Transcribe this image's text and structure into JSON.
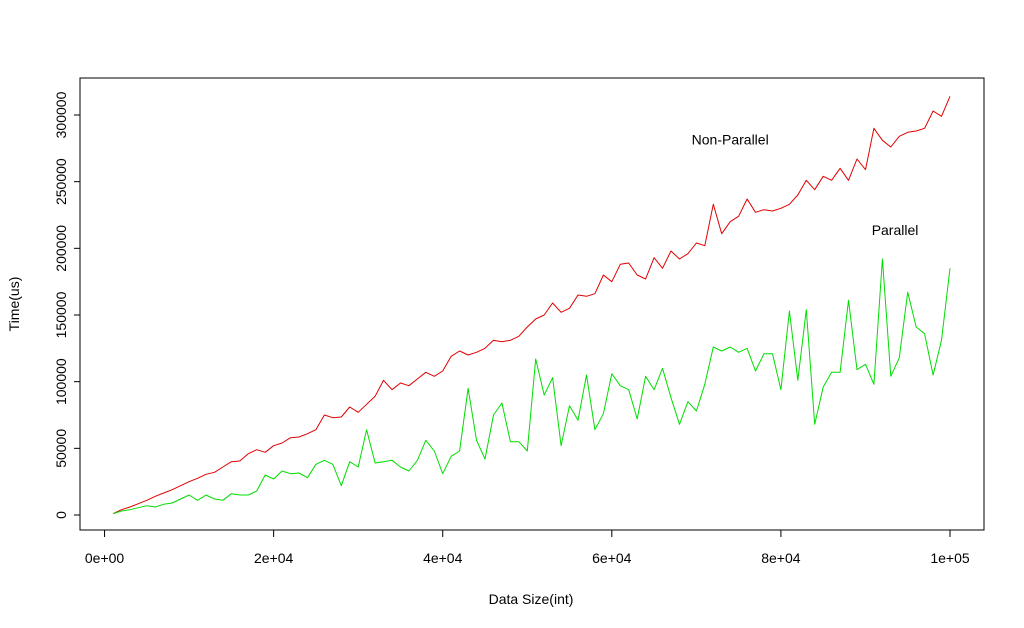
{
  "chart_data": {
    "type": "line",
    "xlabel": "Data Size(int)",
    "ylabel": "Time(us)",
    "xlim": [
      1000,
      100000
    ],
    "ylim": [
      0,
      315000
    ],
    "x_ticks": [
      {
        "value": 0,
        "label": "0e+00"
      },
      {
        "value": 20000,
        "label": "2e+04"
      },
      {
        "value": 40000,
        "label": "4e+04"
      },
      {
        "value": 60000,
        "label": "6e+04"
      },
      {
        "value": 80000,
        "label": "8e+04"
      },
      {
        "value": 100000,
        "label": "1e+05"
      }
    ],
    "y_ticks": [
      {
        "value": 0,
        "label": "0"
      },
      {
        "value": 50000,
        "label": "50000"
      },
      {
        "value": 100000,
        "label": "100000"
      },
      {
        "value": 150000,
        "label": "150000"
      },
      {
        "value": 200000,
        "label": "200000"
      },
      {
        "value": 250000,
        "label": "250000"
      },
      {
        "value": 300000,
        "label": "300000"
      }
    ],
    "grid": false,
    "legend": "none",
    "annotations": [
      {
        "text": "Non-Parallel",
        "x": 74000,
        "y": 278000
      },
      {
        "text": "Parallel",
        "x": 93500,
        "y": 210000
      }
    ],
    "x": [
      1000,
      2000,
      3000,
      4000,
      5000,
      6000,
      7000,
      8000,
      9000,
      10000,
      11000,
      12000,
      13000,
      14000,
      15000,
      16000,
      17000,
      18000,
      19000,
      20000,
      21000,
      22000,
      23000,
      24000,
      25000,
      26000,
      27000,
      28000,
      29000,
      30000,
      31000,
      32000,
      33000,
      34000,
      35000,
      36000,
      37000,
      38000,
      39000,
      40000,
      41000,
      42000,
      43000,
      44000,
      45000,
      46000,
      47000,
      48000,
      49000,
      50000,
      51000,
      52000,
      53000,
      54000,
      55000,
      56000,
      57000,
      58000,
      59000,
      60000,
      61000,
      62000,
      63000,
      64000,
      65000,
      66000,
      67000,
      68000,
      69000,
      70000,
      71000,
      72000,
      73000,
      74000,
      75000,
      76000,
      77000,
      78000,
      79000,
      80000,
      81000,
      82000,
      83000,
      84000,
      85000,
      86000,
      87000,
      88000,
      89000,
      90000,
      91000,
      92000,
      93000,
      94000,
      95000,
      96000,
      97000,
      98000,
      99000,
      100000
    ],
    "series": [
      {
        "name": "Non-Parallel",
        "color": "#e00000",
        "values": [
          1000,
          4000,
          6000,
          8500,
          11000,
          14000,
          16500,
          19000,
          22000,
          25000,
          27500,
          30500,
          32000,
          36000,
          40000,
          40500,
          46000,
          49000,
          47000,
          52000,
          54000,
          58000,
          58500,
          61000,
          64000,
          75000,
          73000,
          73500,
          81000,
          77000,
          83000,
          89000,
          101000,
          94000,
          99000,
          97000,
          102000,
          107000,
          104000,
          108000,
          119000,
          123000,
          120000,
          122000,
          125000,
          131000,
          130000,
          131000,
          134000,
          141000,
          147000,
          150000,
          159000,
          152000,
          155000,
          165000,
          164000,
          166000,
          180000,
          175000,
          188000,
          189000,
          180000,
          177000,
          193000,
          185000,
          198000,
          192000,
          196000,
          204000,
          202000,
          233000,
          211000,
          220000,
          224000,
          237000,
          227000,
          229000,
          228000,
          230000,
          233000,
          240000,
          251000,
          244000,
          254000,
          251000,
          260000,
          251000,
          267000,
          259000,
          290000,
          281000,
          276000,
          284000,
          287000,
          288000,
          290000,
          303000,
          299000,
          314000
        ]
      },
      {
        "name": "Parallel",
        "color": "#00dd00",
        "values": [
          1000,
          3000,
          4000,
          5500,
          7000,
          6000,
          8000,
          9000,
          12000,
          15000,
          11000,
          15000,
          12000,
          11000,
          16000,
          15000,
          15000,
          18000,
          30000,
          27000,
          33000,
          31000,
          31500,
          28000,
          38000,
          41000,
          38000,
          22000,
          40000,
          36000,
          64000,
          39000,
          40000,
          41000,
          36000,
          33000,
          41000,
          56000,
          48000,
          31000,
          44000,
          48000,
          95000,
          56000,
          42000,
          75000,
          84000,
          55000,
          55000,
          48000,
          117000,
          90000,
          103000,
          52000,
          82000,
          71000,
          105000,
          64000,
          76000,
          106000,
          97000,
          94000,
          72000,
          104000,
          94000,
          110000,
          88000,
          68000,
          85000,
          78000,
          98000,
          126000,
          123000,
          126000,
          122000,
          125000,
          108000,
          121000,
          121000,
          94000,
          153000,
          101000,
          154000,
          68000,
          96000,
          107000,
          107000,
          161000,
          109000,
          113000,
          98000,
          192000,
          104000,
          118000,
          167000,
          141000,
          136000,
          105000,
          131000,
          185000
        ]
      }
    ]
  }
}
